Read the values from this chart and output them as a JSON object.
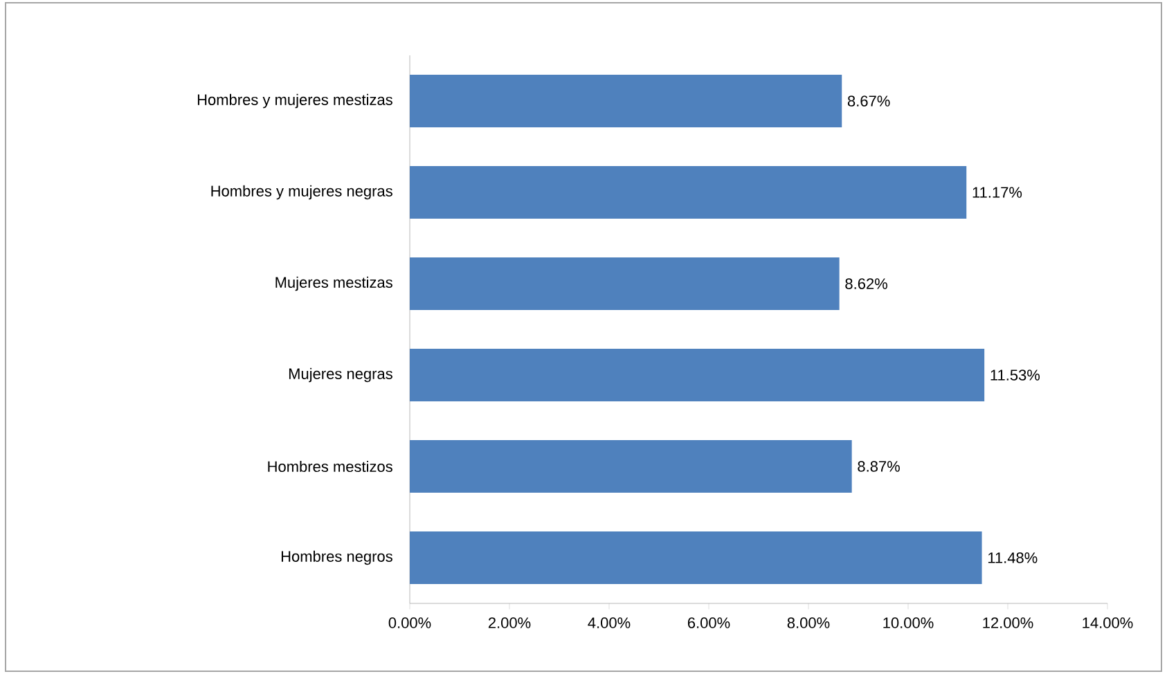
{
  "chart_data": {
    "type": "bar",
    "orientation": "horizontal",
    "categories": [
      "Hombres y mujeres mestizas",
      "Hombres y mujeres negras",
      "Mujeres mestizas",
      "Mujeres negras",
      "Hombres mestizos",
      "Hombres negros"
    ],
    "values": [
      8.67,
      11.17,
      8.62,
      11.53,
      8.87,
      11.48
    ],
    "value_labels": [
      "8.67%",
      "11.17%",
      "8.62%",
      "11.53%",
      "8.87%",
      "11.48%"
    ],
    "color": "#4f81bd",
    "xlim": [
      0,
      14
    ],
    "grid": false,
    "xticks": [
      {
        "value": 0,
        "label": "0.00%"
      },
      {
        "value": 2,
        "label": "2.00%"
      },
      {
        "value": 4,
        "label": "4.00%"
      },
      {
        "value": 6,
        "label": "6.00%"
      },
      {
        "value": 8,
        "label": "8.00%"
      },
      {
        "value": 10,
        "label": "10.00%"
      },
      {
        "value": 12,
        "label": "12.00%"
      },
      {
        "value": 14,
        "label": "14.00%"
      }
    ]
  }
}
